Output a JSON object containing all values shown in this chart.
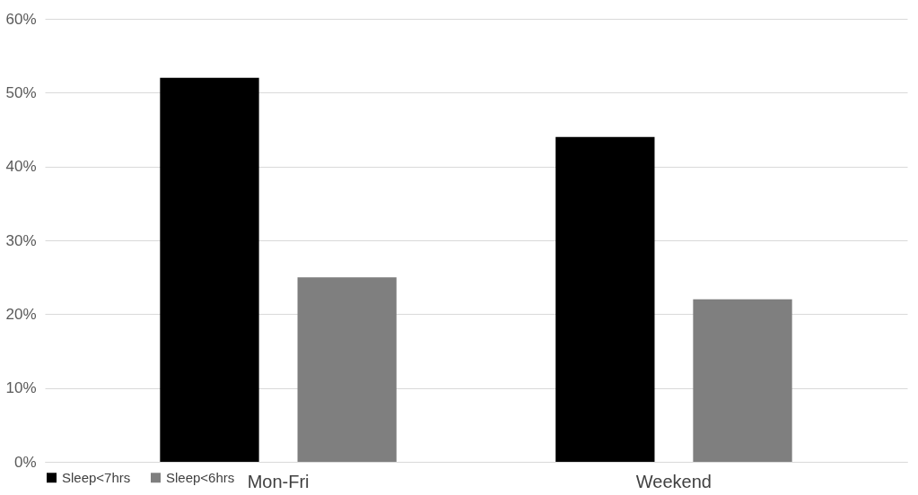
{
  "chart_data": {
    "type": "bar",
    "categories": [
      "Mon-Fri",
      "Weekend"
    ],
    "series": [
      {
        "name": "Sleep<7hrs",
        "color": "#000000",
        "values": [
          52,
          44
        ]
      },
      {
        "name": "Sleep<6hrs",
        "color": "#7f7f7f",
        "values": [
          25,
          22
        ]
      }
    ],
    "ylim": [
      0,
      60
    ],
    "yticks": [
      {
        "value": 0,
        "label": "0%"
      },
      {
        "value": 10,
        "label": "10%"
      },
      {
        "value": 20,
        "label": "20%"
      },
      {
        "value": 30,
        "label": "30%"
      },
      {
        "value": 40,
        "label": "40%"
      },
      {
        "value": 50,
        "label": "50%"
      },
      {
        "value": 60,
        "label": "60%"
      }
    ],
    "grid": "y",
    "legend": "bottom"
  }
}
